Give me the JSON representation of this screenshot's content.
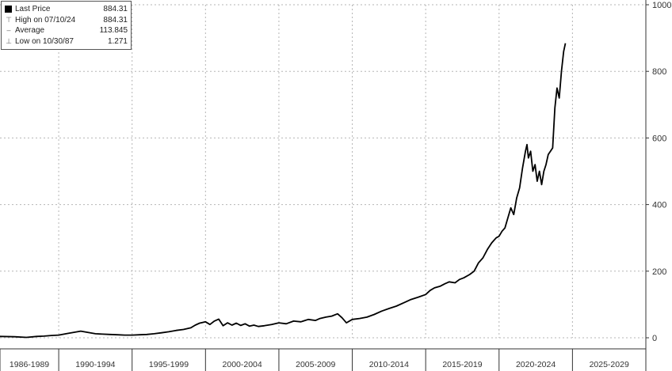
{
  "legend": {
    "items": [
      {
        "icon": "filled-square-icon",
        "label": "Last Price",
        "value": "884.31"
      },
      {
        "icon": "high-marker-icon",
        "label": "High on 07/10/24",
        "value": "884.31"
      },
      {
        "icon": "average-line-icon",
        "label": "Average",
        "value": "113.845"
      },
      {
        "icon": "low-marker-icon",
        "label": "Low on 10/30/87",
        "value": "1.271"
      }
    ]
  },
  "chart_data": {
    "type": "line",
    "title": "",
    "xlabel": "",
    "ylabel": "",
    "ylim": [
      0,
      1000
    ],
    "xlim": [
      1986,
      2030
    ],
    "yticks": [
      0,
      200,
      400,
      600,
      800,
      1000
    ],
    "grid": true,
    "legend_position": "top-left",
    "line_color": "#000000",
    "x_periods": [
      {
        "label": "1986-1989",
        "start": 1986,
        "end": 1990
      },
      {
        "label": "1990-1994",
        "start": 1990,
        "end": 1995
      },
      {
        "label": "1995-1999",
        "start": 1995,
        "end": 2000
      },
      {
        "label": "2000-2004",
        "start": 2000,
        "end": 2005
      },
      {
        "label": "2005-2009",
        "start": 2005,
        "end": 2010
      },
      {
        "label": "2010-2014",
        "start": 2010,
        "end": 2015
      },
      {
        "label": "2015-2019",
        "start": 2015,
        "end": 2020
      },
      {
        "label": "2020-2024",
        "start": 2020,
        "end": 2025
      },
      {
        "label": "2025-2029",
        "start": 2025,
        "end": 2030
      }
    ],
    "series": [
      {
        "x": [
          1986.0,
          1987.0,
          1987.8,
          1988.5,
          1989.0,
          1989.5,
          1990.0,
          1990.5,
          1991.0,
          1991.5,
          1992.0,
          1992.5,
          1993.0,
          1993.5,
          1994.0,
          1994.5,
          1995.0,
          1995.5,
          1996.0,
          1996.5,
          1997.0,
          1997.5,
          1998.0,
          1998.5,
          1999.0,
          1999.3,
          1999.6,
          2000.0,
          2000.3,
          2000.6,
          2000.9,
          2001.2,
          2001.5,
          2001.8,
          2002.1,
          2002.4,
          2002.7,
          2003.0,
          2003.3,
          2003.6,
          2004.0,
          2004.5,
          2005.0,
          2005.5,
          2006.0,
          2006.5,
          2007.0,
          2007.5,
          2007.8,
          2008.2,
          2008.6,
          2009.0,
          2009.3,
          2009.6,
          2010.0,
          2010.5,
          2011.0,
          2011.5,
          2012.0,
          2012.5,
          2013.0,
          2013.5,
          2014.0,
          2014.5,
          2015.0,
          2015.3,
          2015.6,
          2016.0,
          2016.3,
          2016.6,
          2017.0,
          2017.3,
          2017.6,
          2018.0,
          2018.3,
          2018.6,
          2018.9,
          2019.2,
          2019.5,
          2019.8,
          2020.0,
          2020.2,
          2020.4,
          2020.6,
          2020.8,
          2021.0,
          2021.2,
          2021.4,
          2021.6,
          2021.8,
          2021.9,
          2022.0,
          2022.15,
          2022.3,
          2022.45,
          2022.6,
          2022.75,
          2022.9,
          2023.05,
          2023.2,
          2023.35,
          2023.5,
          2023.65,
          2023.8,
          2023.95,
          2024.1,
          2024.25,
          2024.4,
          2024.52
        ],
        "values": [
          4,
          3,
          1.271,
          4,
          5,
          7,
          8,
          12,
          16,
          20,
          16,
          12,
          11,
          10,
          9,
          8,
          8,
          9,
          10,
          12,
          15,
          18,
          22,
          25,
          30,
          38,
          44,
          48,
          40,
          50,
          56,
          36,
          45,
          38,
          44,
          37,
          42,
          35,
          38,
          34,
          36,
          40,
          45,
          42,
          50,
          48,
          55,
          52,
          58,
          62,
          65,
          72,
          60,
          45,
          55,
          58,
          62,
          70,
          80,
          88,
          95,
          105,
          115,
          122,
          130,
          142,
          150,
          155,
          162,
          168,
          165,
          175,
          180,
          190,
          200,
          225,
          240,
          265,
          285,
          300,
          305,
          320,
          330,
          360,
          390,
          370,
          420,
          450,
          510,
          560,
          580,
          540,
          560,
          500,
          520,
          470,
          500,
          460,
          500,
          520,
          550,
          560,
          570,
          690,
          750,
          720,
          800,
          860,
          884.31
        ]
      }
    ]
  }
}
